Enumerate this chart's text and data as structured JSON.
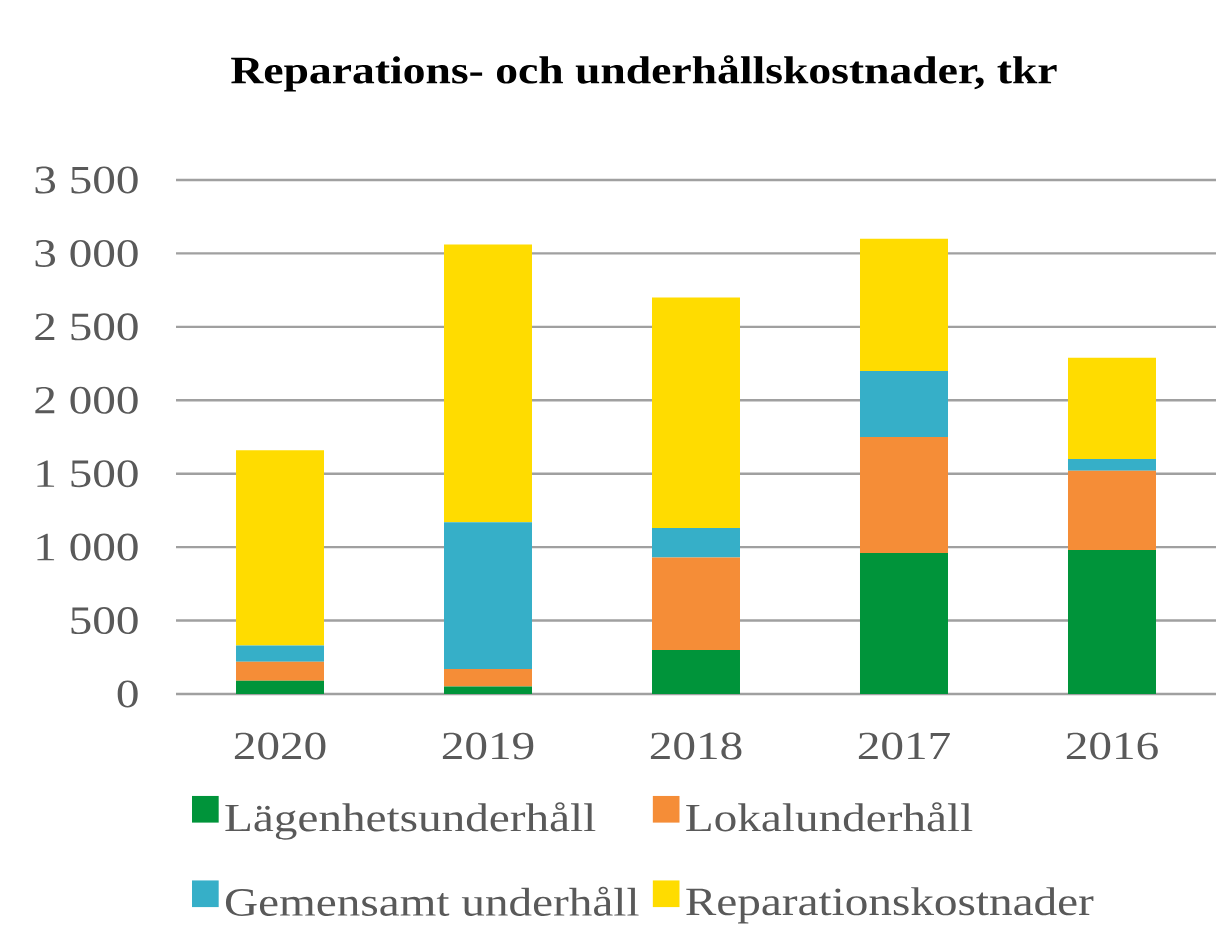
{
  "chart_data": {
    "type": "bar",
    "title": "Reparations- och underhållskostnader, tkr",
    "categories": [
      "2020",
      "2019",
      "2018",
      "2017",
      "2016"
    ],
    "stacked": true,
    "series": [
      {
        "name": "Lägenhetsunderhåll",
        "color": "#00943a",
        "values": [
          90,
          50,
          300,
          960,
          980
        ]
      },
      {
        "name": "Lokalunderhåll",
        "color": "#f58d37",
        "values": [
          130,
          120,
          630,
          790,
          540
        ]
      },
      {
        "name": "Gemensamt underhåll",
        "color": "#36afc8",
        "values": [
          110,
          1000,
          200,
          450,
          80
        ]
      },
      {
        "name": "Reparationskostnader",
        "color": "#ffdc00",
        "values": [
          1330,
          1890,
          1570,
          900,
          690
        ]
      }
    ],
    "ylim": [
      0,
      3500
    ],
    "yticks": [
      0,
      500,
      {
        "value": 1000,
        "label": "1 000"
      },
      {
        "value": 1500,
        "label": "1 500"
      },
      {
        "value": 2000,
        "label": "2 000"
      },
      {
        "value": 2500,
        "label": "2 500"
      },
      {
        "value": 3000,
        "label": "3 000"
      },
      {
        "value": 3500,
        "label": "3 500"
      }
    ],
    "grid": "y",
    "legend": "bottom"
  }
}
